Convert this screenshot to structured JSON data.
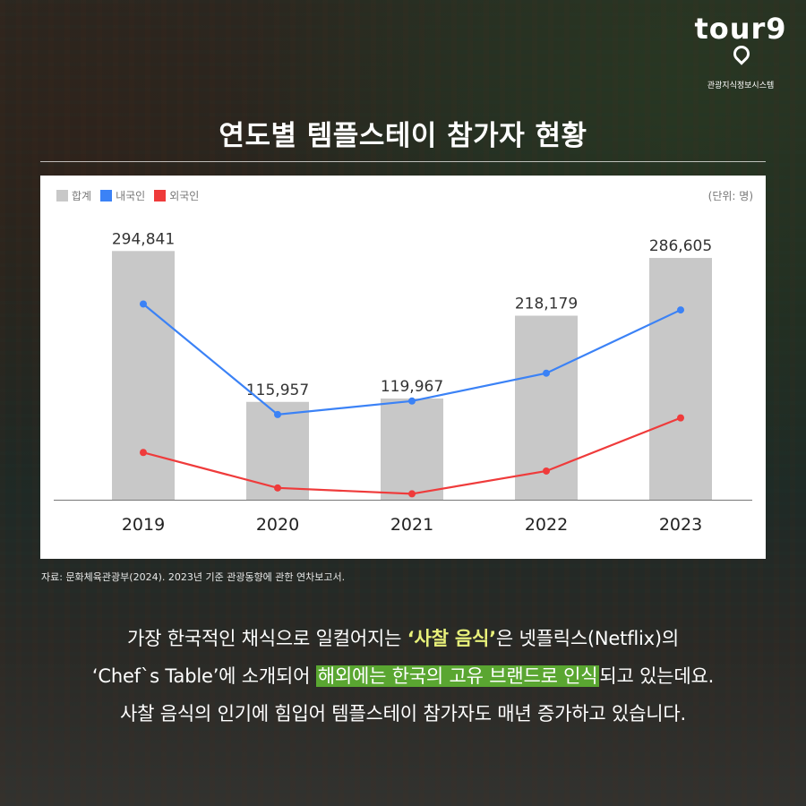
{
  "brand": {
    "logo_text": "tour9",
    "logo_subtitle": "관광지식정보시스템"
  },
  "title": "연도별 템플스테이 참가자 현황",
  "unit_label": "(단위: 명)",
  "source_note": "자료: 문화체육관광부(2024). 2023년 기준 관광동향에 관한 연차보고서.",
  "body": {
    "line1_pre": "가장 한국적인 채식으로 일컬어지는 ",
    "line1_highlight": "‘사찰 음식’",
    "line1_post": "은 넷플릭스(Netflix)의",
    "line2_pre": "‘Chef`s Table’에 소개되어 ",
    "line2_highlight": "해외에는 한국의 고유 브랜드로 인식",
    "line2_post": "되고 있는데요.",
    "line3": "사찰 음식의 인기에 힘입어 템플스테이 참가자도 매년 증가하고 있습니다."
  },
  "chart_data": {
    "type": "bar",
    "categories": [
      "2019",
      "2020",
      "2021",
      "2022",
      "2023"
    ],
    "ylim": [
      0,
      310000
    ],
    "legend_position": "top-left",
    "series": [
      {
        "name": "합계",
        "type": "bar",
        "color": "#c8c8c8",
        "values": [
          294841,
          115957,
          119967,
          218179,
          286605
        ],
        "labels": [
          "294,841",
          "115,957",
          "119,967",
          "218,179",
          "286,605"
        ]
      },
      {
        "name": "내국인",
        "type": "line",
        "color": "#3b82f6",
        "values": [
          232000,
          101000,
          117000,
          150000,
          225000
        ]
      },
      {
        "name": "외국인",
        "type": "line",
        "color": "#ef3b3b",
        "values": [
          56000,
          14000,
          7000,
          34000,
          97000
        ]
      }
    ]
  }
}
